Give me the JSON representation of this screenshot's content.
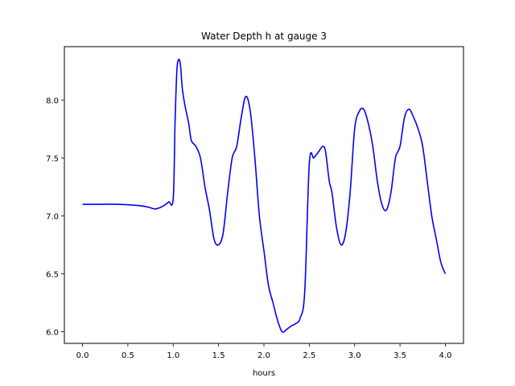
{
  "chart_data": {
    "type": "line",
    "title": "Water Depth h at gauge 3",
    "xlabel": "hours",
    "ylabel": "",
    "xlim": [
      -0.2,
      4.2
    ],
    "ylim": [
      5.9,
      8.46
    ],
    "xticks": [
      0.0,
      0.5,
      1.0,
      1.5,
      2.0,
      2.5,
      3.0,
      3.5,
      4.0
    ],
    "xtick_labels": [
      "0.0",
      "0.5",
      "1.0",
      "1.5",
      "2.0",
      "2.5",
      "3.0",
      "3.5",
      "4.0"
    ],
    "yticks": [
      6.0,
      6.5,
      7.0,
      7.5,
      8.0
    ],
    "ytick_labels": [
      "6.0",
      "6.5",
      "7.0",
      "7.5",
      "8.0"
    ],
    "grid": false,
    "series": [
      {
        "color": "#0000ff",
        "x": [
          0.0,
          0.2,
          0.4,
          0.6,
          0.7,
          0.75,
          0.8,
          0.85,
          0.9,
          0.95,
          1.0,
          1.02,
          1.04,
          1.06,
          1.08,
          1.1,
          1.13,
          1.17,
          1.2,
          1.25,
          1.3,
          1.35,
          1.4,
          1.45,
          1.5,
          1.55,
          1.6,
          1.65,
          1.7,
          1.75,
          1.8,
          1.85,
          1.9,
          1.95,
          2.0,
          2.05,
          2.1,
          2.15,
          2.2,
          2.25,
          2.3,
          2.35,
          2.4,
          2.45,
          2.5,
          2.55,
          2.6,
          2.65,
          2.68,
          2.72,
          2.75,
          2.8,
          2.85,
          2.9,
          2.95,
          3.0,
          3.05,
          3.1,
          3.15,
          3.2,
          3.25,
          3.3,
          3.35,
          3.4,
          3.45,
          3.5,
          3.55,
          3.6,
          3.65,
          3.7,
          3.75,
          3.8,
          3.85,
          3.9,
          3.95,
          4.0
        ],
        "y": [
          7.1,
          7.1,
          7.1,
          7.09,
          7.08,
          7.07,
          7.06,
          7.07,
          7.09,
          7.12,
          7.15,
          7.8,
          8.25,
          8.35,
          8.3,
          8.1,
          7.95,
          7.8,
          7.65,
          7.6,
          7.5,
          7.25,
          7.05,
          6.8,
          6.75,
          6.85,
          7.2,
          7.5,
          7.6,
          7.85,
          8.03,
          7.9,
          7.5,
          7.0,
          6.7,
          6.4,
          6.25,
          6.1,
          6.0,
          6.02,
          6.05,
          6.07,
          6.12,
          6.35,
          7.45,
          7.5,
          7.55,
          7.6,
          7.55,
          7.3,
          7.2,
          6.9,
          6.75,
          6.85,
          7.2,
          7.75,
          7.9,
          7.92,
          7.8,
          7.6,
          7.3,
          7.1,
          7.05,
          7.2,
          7.5,
          7.6,
          7.85,
          7.92,
          7.85,
          7.75,
          7.6,
          7.3,
          7.0,
          6.8,
          6.6,
          6.5
        ]
      }
    ]
  }
}
